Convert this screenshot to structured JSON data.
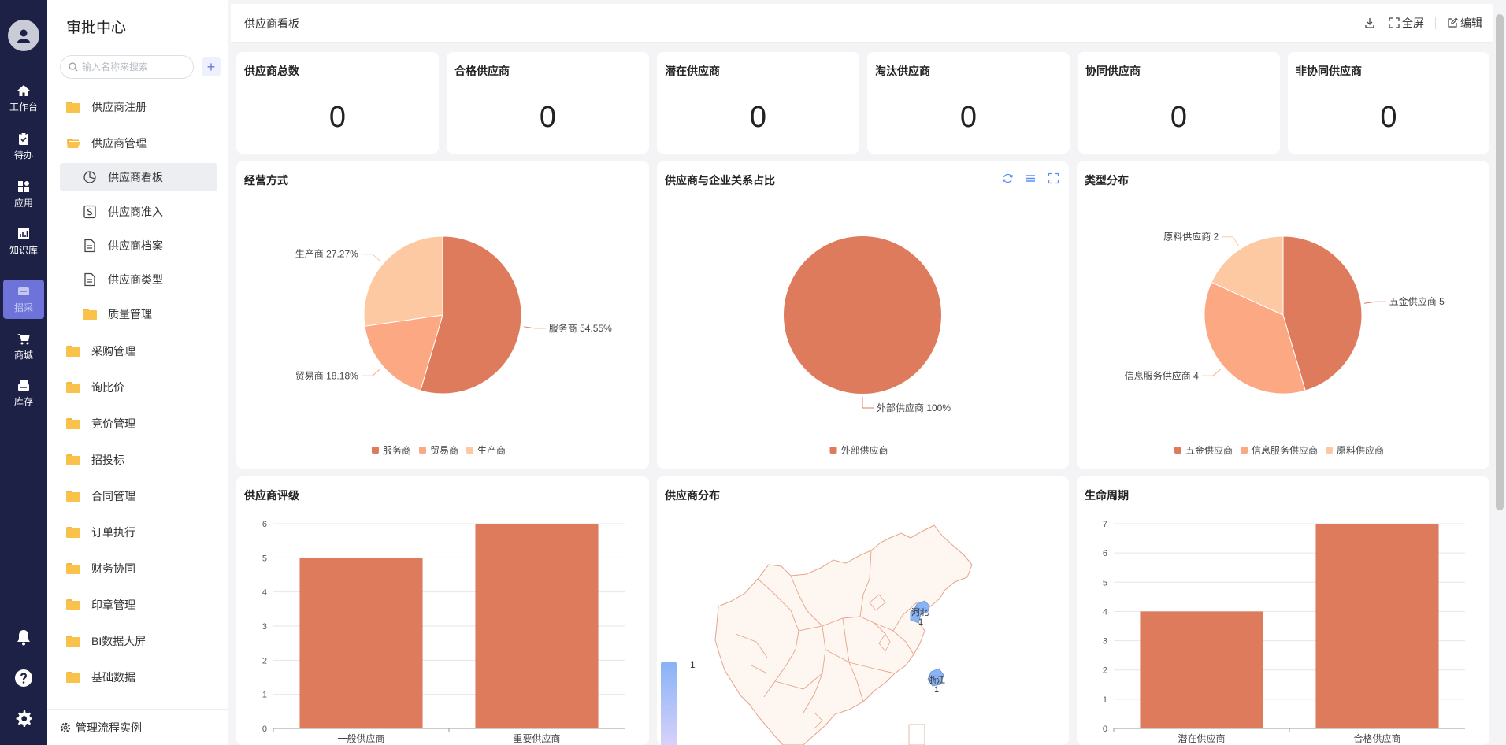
{
  "rail": {
    "items": [
      {
        "label": "工作台",
        "icon": "home-icon"
      },
      {
        "label": "待办",
        "icon": "clipboard-icon"
      },
      {
        "label": "应用",
        "icon": "apps-grid-icon"
      },
      {
        "label": "知识库",
        "icon": "chart-book-icon"
      },
      {
        "label": "招采",
        "icon": "procurement-icon"
      },
      {
        "label": "商城",
        "icon": "cart-icon"
      },
      {
        "label": "库存",
        "icon": "inventory-icon"
      }
    ]
  },
  "menu": {
    "title": "审批中心",
    "search_placeholder": "输入名称来搜索",
    "items": [
      {
        "label": "供应商注册"
      },
      {
        "label": "供应商管理"
      },
      {
        "label": "供应商看板"
      },
      {
        "label": "供应商准入"
      },
      {
        "label": "供应商档案"
      },
      {
        "label": "供应商类型"
      },
      {
        "label": "质量管理"
      },
      {
        "label": "采购管理"
      },
      {
        "label": "询比价"
      },
      {
        "label": "竞价管理"
      },
      {
        "label": "招投标"
      },
      {
        "label": "合同管理"
      },
      {
        "label": "订单执行"
      },
      {
        "label": "财务协同"
      },
      {
        "label": "印章管理"
      },
      {
        "label": "BI数据大屏"
      },
      {
        "label": "基础数据"
      }
    ],
    "footer": "管理流程实例"
  },
  "topbar": {
    "title": "供应商看板",
    "fullscreen": "全屏",
    "edit": "编辑"
  },
  "stats": [
    {
      "label": "供应商总数",
      "value": "0"
    },
    {
      "label": "合格供应商",
      "value": "0"
    },
    {
      "label": "潜在供应商",
      "value": "0"
    },
    {
      "label": "淘汰供应商",
      "value": "0"
    },
    {
      "label": "协同供应商",
      "value": "0"
    },
    {
      "label": "非协同供应商",
      "value": "0"
    }
  ],
  "panels": {
    "business": "经营方式",
    "relation": "供应商与企业关系占比",
    "type": "类型分布",
    "rating": "供应商评级",
    "distribution": "供应商分布",
    "lifecycle": "生命周期"
  },
  "colors": {
    "dark": "#de7b5c",
    "medium": "#fba883",
    "light": "#fdc9a3",
    "map_fill": "#fef6f0",
    "map_stroke": "#e6a389",
    "map_highlight": "#8ab3f5",
    "rail_bg": "#1d2145",
    "accent": "#6d73d9"
  },
  "chart_data": [
    {
      "type": "pie",
      "slices": [
        {
          "name": "服务商",
          "value": 54.55,
          "label": "服务商 54.55%"
        },
        {
          "name": "贸易商",
          "value": 18.18,
          "label": "贸易商 18.18%"
        },
        {
          "name": "生产商",
          "value": 27.27,
          "label": "生产商 27.27%"
        }
      ],
      "legend": [
        "服务商",
        "贸易商",
        "生产商"
      ],
      "legend_position": "bottom"
    },
    {
      "type": "pie",
      "slices": [
        {
          "name": "外部供应商",
          "value": 100,
          "label": "外部供应商 100%"
        }
      ],
      "legend": [
        "外部供应商"
      ],
      "legend_position": "bottom"
    },
    {
      "type": "pie",
      "slices": [
        {
          "name": "五金供应商",
          "value": 5,
          "label": "五金供应商 5"
        },
        {
          "name": "信息服务供应商",
          "value": 4,
          "label": "信息服务供应商 4"
        },
        {
          "name": "原料供应商",
          "value": 2,
          "label": "原料供应商 2"
        }
      ],
      "legend": [
        "五金供应商",
        "信息服务供应商",
        "原料供应商"
      ],
      "legend_position": "bottom"
    },
    {
      "type": "bar",
      "categories": [
        "一般供应商",
        "重要供应商"
      ],
      "values": [
        5,
        6
      ],
      "ylim": [
        0,
        6
      ],
      "yticks": [
        "0",
        "1",
        "2",
        "3",
        "4",
        "5",
        "6"
      ],
      "grid": true
    },
    {
      "type": "map",
      "regions": [
        {
          "name": "河北",
          "value": 1,
          "label": "1"
        },
        {
          "name": "浙江",
          "value": 1,
          "label": "1"
        }
      ],
      "visual_map_max": "1"
    },
    {
      "type": "bar",
      "categories": [
        "潜在供应商",
        "合格供应商"
      ],
      "values": [
        4,
        7
      ],
      "ylim": [
        0,
        7
      ],
      "yticks": [
        "0",
        "1",
        "2",
        "3",
        "4",
        "5",
        "6",
        "7"
      ],
      "grid": true
    }
  ]
}
